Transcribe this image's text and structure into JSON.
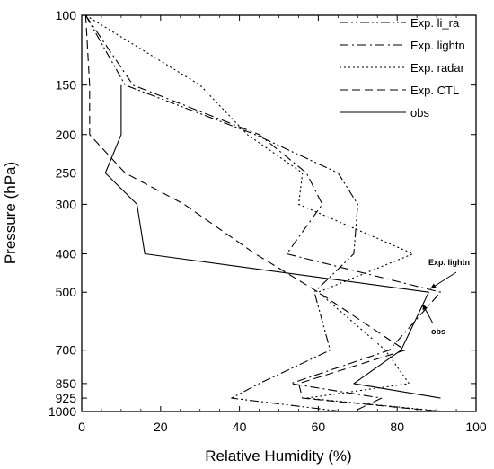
{
  "chart_data": {
    "type": "line",
    "xlabel": "Relative Humidity (%)",
    "ylabel": "Pressure (hPa)",
    "xlim": [
      0,
      100
    ],
    "ylim": [
      100,
      1000
    ],
    "y_scale": "log",
    "y_inverted": true,
    "grid": false,
    "legend_position": "top-right",
    "x_ticks": [
      0,
      20,
      40,
      60,
      80,
      100
    ],
    "y_ticks": [
      100,
      150,
      200,
      250,
      300,
      400,
      500,
      700,
      850,
      925,
      1000
    ],
    "series": [
      {
        "name": "Exp. li_ra",
        "style": "dash-dot-dot",
        "points": [
          [
            1,
            100
          ],
          [
            11,
            150
          ],
          [
            44,
            200
          ],
          [
            65,
            250
          ],
          [
            70,
            300
          ],
          [
            69,
            400
          ],
          [
            59,
            500
          ],
          [
            63,
            700
          ],
          [
            45,
            850
          ],
          [
            38,
            925
          ],
          [
            66,
            1000
          ]
        ]
      },
      {
        "name": "Exp. lightn",
        "style": "dash-dot",
        "points": [
          [
            1,
            100
          ],
          [
            13,
            150
          ],
          [
            45,
            200
          ],
          [
            57,
            250
          ],
          [
            61,
            300
          ],
          [
            52,
            400
          ],
          [
            91,
            500
          ],
          [
            78,
            700
          ],
          [
            53,
            850
          ],
          [
            76,
            925
          ],
          [
            69,
            1000
          ]
        ]
      },
      {
        "name": "Exp. radar",
        "style": "dotted",
        "points": [
          [
            1,
            100
          ],
          [
            30,
            150
          ],
          [
            42,
            200
          ],
          [
            56,
            250
          ],
          [
            55,
            300
          ],
          [
            84,
            400
          ],
          [
            60,
            500
          ],
          [
            77,
            700
          ],
          [
            83,
            850
          ],
          [
            57,
            925
          ],
          [
            92,
            1000
          ]
        ]
      },
      {
        "name": "Exp. CTL",
        "style": "dashed",
        "points": [
          [
            1,
            100
          ],
          [
            2,
            150
          ],
          [
            2,
            200
          ],
          [
            11,
            250
          ],
          [
            26,
            300
          ],
          [
            44,
            400
          ],
          [
            60,
            500
          ],
          [
            82,
            700
          ],
          [
            55,
            850
          ],
          [
            56,
            925
          ],
          [
            91,
            1000
          ]
        ]
      },
      {
        "name": "obs",
        "style": "solid",
        "points": [
          [
            10,
            150
          ],
          [
            10,
            200
          ],
          [
            6,
            250
          ],
          [
            14,
            300
          ],
          [
            16,
            400
          ],
          [
            88,
            500
          ],
          [
            81,
            700
          ],
          [
            69,
            850
          ],
          [
            91,
            925
          ]
        ]
      }
    ],
    "annotations": [
      {
        "text": "Exp. lightn",
        "target": [
          88,
          500
        ]
      },
      {
        "text": "obs",
        "target": [
          86,
          520
        ]
      }
    ]
  }
}
